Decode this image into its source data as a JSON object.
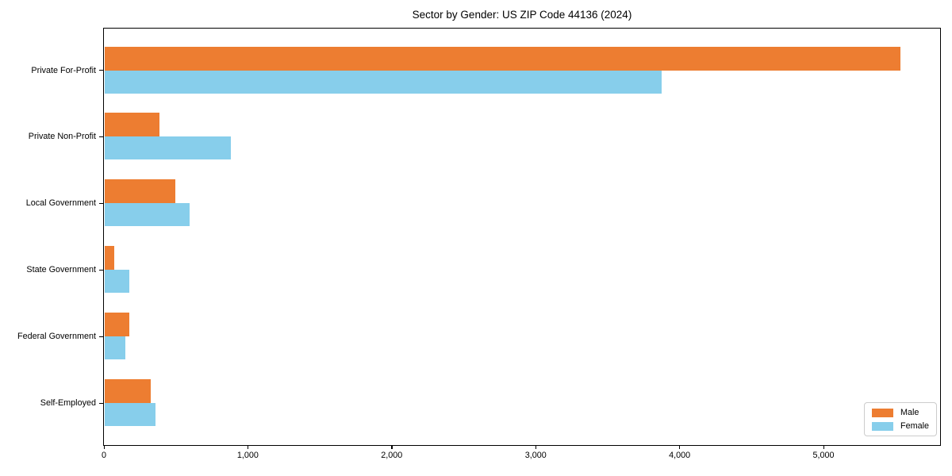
{
  "figure": {
    "background": "#ffffff",
    "axis_color": "#000000",
    "text_color": "#000000"
  },
  "chart_data": {
    "type": "bar",
    "orientation": "horizontal",
    "title": "Sector by Gender: US ZIP Code 44136 (2024)",
    "categories": [
      "Private For-Profit",
      "Private Non-Profit",
      "Local Government",
      "State Government",
      "Federal Government",
      "Self-Employed"
    ],
    "series": [
      {
        "name": "Male",
        "color": "#ED7D31",
        "values": [
          5530,
          380,
          488,
          64,
          172,
          317
        ]
      },
      {
        "name": "Female",
        "color": "#87CEEB",
        "values": [
          3870,
          876,
          590,
          169,
          142,
          354
        ]
      }
    ],
    "xlim": [
      0,
      5810
    ],
    "xticks": [
      0,
      1000,
      2000,
      3000,
      4000,
      5000
    ],
    "xtick_labels": [
      "0",
      "1,000",
      "2,000",
      "3,000",
      "4,000",
      "5,000"
    ],
    "ylabel": "",
    "xlabel": "",
    "grid": false,
    "legend": {
      "position": "lower-right",
      "entries": [
        "Male",
        "Female"
      ]
    }
  }
}
